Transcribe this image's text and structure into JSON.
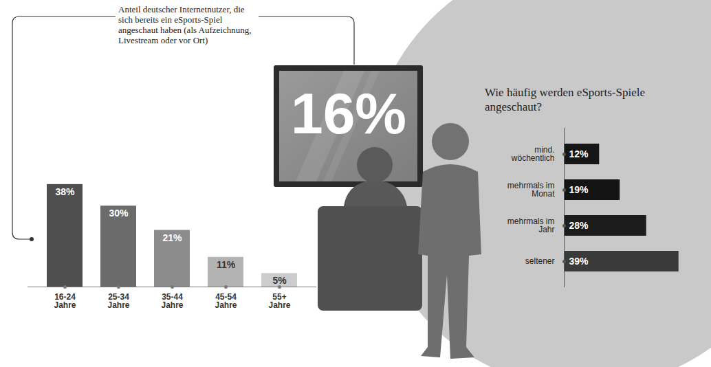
{
  "chart_data": [
    {
      "type": "bar",
      "annotation": "Anteil deutscher Internetnutzer, die sich bereits ein eSports-Spiel angeschaut haben (als Aufzeichnung, Livestream oder vor Ort)",
      "headline_value": 16,
      "headline_label": "16%",
      "categories": [
        "16-24 Jahre",
        "25-34 Jahre",
        "35-44 Jahre",
        "45-54 Jahre",
        "55+ Jahre"
      ],
      "values": [
        38,
        30,
        21,
        11,
        5
      ],
      "value_labels": [
        "38%",
        "30%",
        "21%",
        "11%",
        "5%"
      ],
      "colors": [
        "#4f4f4f",
        "#6b6b6b",
        "#8c8c8c",
        "#b3b3b3",
        "#cccccc"
      ],
      "ylim": [
        0,
        40
      ],
      "yticks": [],
      "data_labels": true,
      "tick_labels": "x"
    },
    {
      "type": "bar",
      "orientation": "horizontal",
      "title": "Wie häufig werden eSports-Spiele angeschaut?",
      "categories": [
        "mind. wöchentlich",
        "mehrmals im Monat",
        "mehrmals im Jahr",
        "seltener"
      ],
      "values": [
        12,
        19,
        28,
        39
      ],
      "value_labels": [
        "12%",
        "19%",
        "28%",
        "39%"
      ],
      "colors": [
        "#161616",
        "#141414",
        "#1c1c1c",
        "#3a3a3a"
      ],
      "xlim": [
        0,
        40
      ],
      "xticks": [],
      "data_labels": true,
      "tick_labels": "y"
    }
  ]
}
